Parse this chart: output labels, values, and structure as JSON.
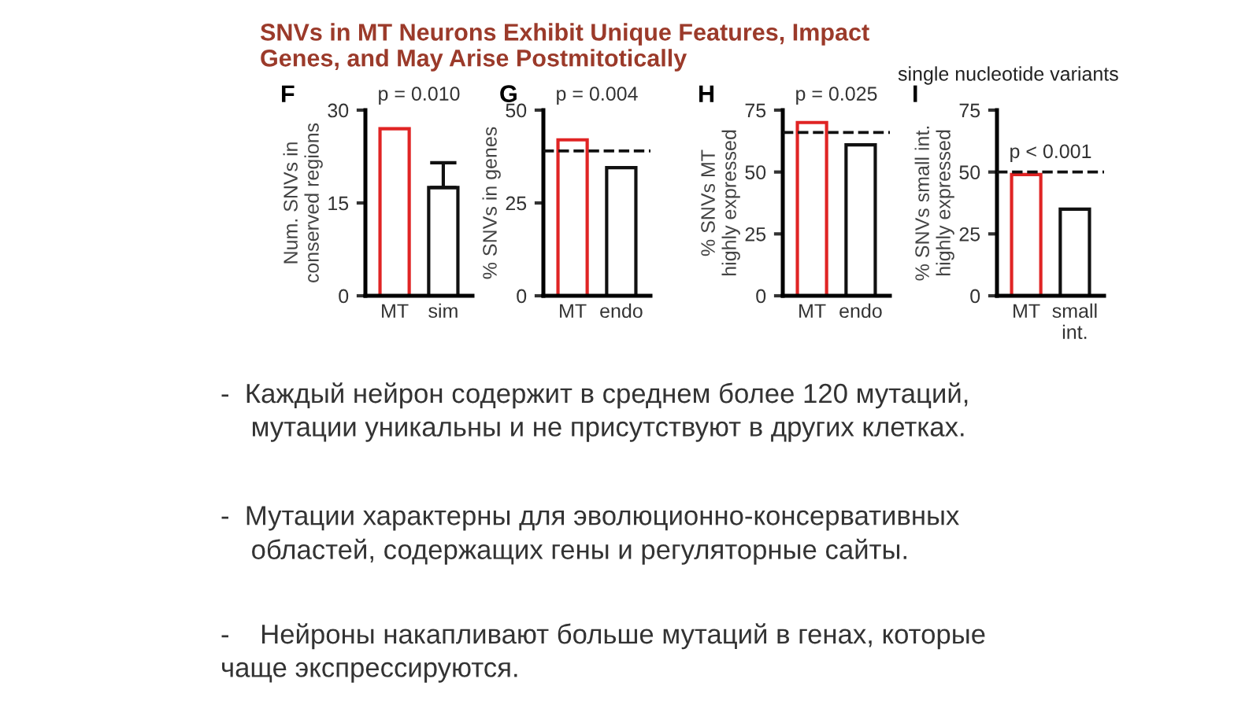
{
  "chart_data": [
    {
      "type": "bar",
      "title": "SNVs in MT Neurons Exhibit Unique Features, Impact\nGenes, and May Arise Postmitotically",
      "ylabel": "Num. SNVs in\nconserved regions",
      "categories": [
        "MT",
        "sim"
      ],
      "values": [
        27,
        17.5
      ],
      "errors": [
        null,
        [
          17.5,
          21.5
        ]
      ],
      "colors": [
        "#e02424",
        "#111111"
      ],
      "ylim": [
        0,
        30
      ],
      "yticks": [
        0,
        15,
        30
      ],
      "grid": false,
      "annotations": [
        "F",
        "p = 0.010",
        "single nucleotide variants",
        "-  Каждый нейрон содержит в среднем более 120 мутаций,\n    мутации уникальны и не присутствуют в других клетках.",
        "-  Мутации характерны для эволюционно-консервативных\n    областей, содержащих гены и регуляторные сайты.",
        "-    Нейроны накапливают больше мутаций в генах, которые\nчаще экспрессируются."
      ]
    },
    {
      "type": "bar",
      "ylabel": "% SNVs in genes",
      "categories": [
        "MT",
        "endo"
      ],
      "values": [
        42,
        34.5
      ],
      "colors": [
        "#e02424",
        "#111111"
      ],
      "ylim": [
        0,
        50
      ],
      "yticks": [
        0,
        25,
        50
      ],
      "grid": false,
      "ref_lines": [
        {
          "axis": "y",
          "value": 39,
          "line_style": "dashed"
        }
      ],
      "annotations": [
        "G",
        "p = 0.004"
      ]
    },
    {
      "type": "bar",
      "ylabel": "% SNVs MT\nhighly expressed",
      "categories": [
        "MT",
        "endo"
      ],
      "values": [
        70,
        61
      ],
      "colors": [
        "#e02424",
        "#111111"
      ],
      "ylim": [
        0,
        75
      ],
      "yticks": [
        0,
        25,
        50,
        75
      ],
      "grid": false,
      "ref_lines": [
        {
          "axis": "y",
          "value": 66,
          "line_style": "dashed"
        }
      ],
      "annotations": [
        "H",
        "p = 0.025"
      ]
    },
    {
      "type": "bar",
      "ylabel": "% SNVs small int.\nhighly expressed",
      "categories": [
        "MT",
        "small\nint."
      ],
      "values": [
        49,
        35
      ],
      "colors": [
        "#e02424",
        "#111111"
      ],
      "ylim": [
        0,
        75
      ],
      "yticks": [
        0,
        25,
        50,
        75
      ],
      "grid": false,
      "ref_lines": [
        {
          "axis": "y",
          "value": 50,
          "line_style": "dashed"
        }
      ],
      "annotations": [
        "I",
        "p < 0.001"
      ]
    }
  ]
}
